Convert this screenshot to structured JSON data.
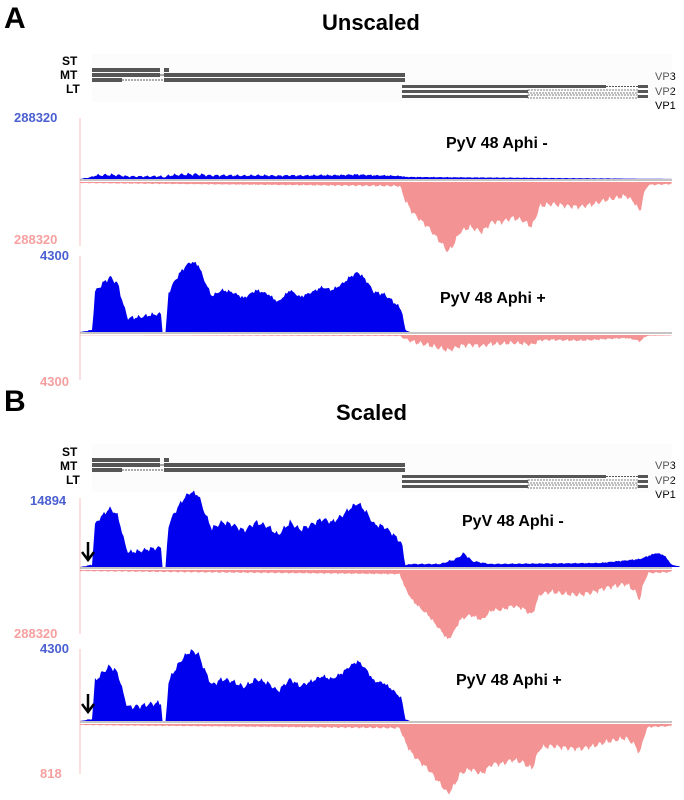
{
  "panels": [
    {
      "letter": "A",
      "title": "Unscaled",
      "genes": {
        "st": "ST",
        "mt": "MT",
        "lt": "LT",
        "vp3": "VP3",
        "vp2": "VP2",
        "vp1": "VP1"
      },
      "tracks": [
        {
          "label": "PyV 48 Aphi -",
          "pos_scale": "288320",
          "neg_scale": "288320",
          "arrow": false
        },
        {
          "label": "PyV 48 Aphi +",
          "pos_scale": "4300",
          "neg_scale": "4300",
          "arrow": false
        }
      ]
    },
    {
      "letter": "B",
      "title": "Scaled",
      "genes": {
        "st": "ST",
        "mt": "MT",
        "lt": "LT",
        "vp3": "VP3",
        "vp2": "VP2",
        "vp1": "VP1"
      },
      "tracks": [
        {
          "label": "PyV 48 Aphi -",
          "pos_scale": "14894",
          "neg_scale": "288320",
          "arrow": true
        },
        {
          "label": "PyV 48 Aphi +",
          "pos_scale": "4300",
          "neg_scale": "818",
          "arrow": true
        }
      ]
    }
  ],
  "colors": {
    "positive": "#0000ee",
    "negative": "#f49393",
    "pos_label": "#4a5fd0",
    "neg_label": "#f6a0a0"
  }
}
